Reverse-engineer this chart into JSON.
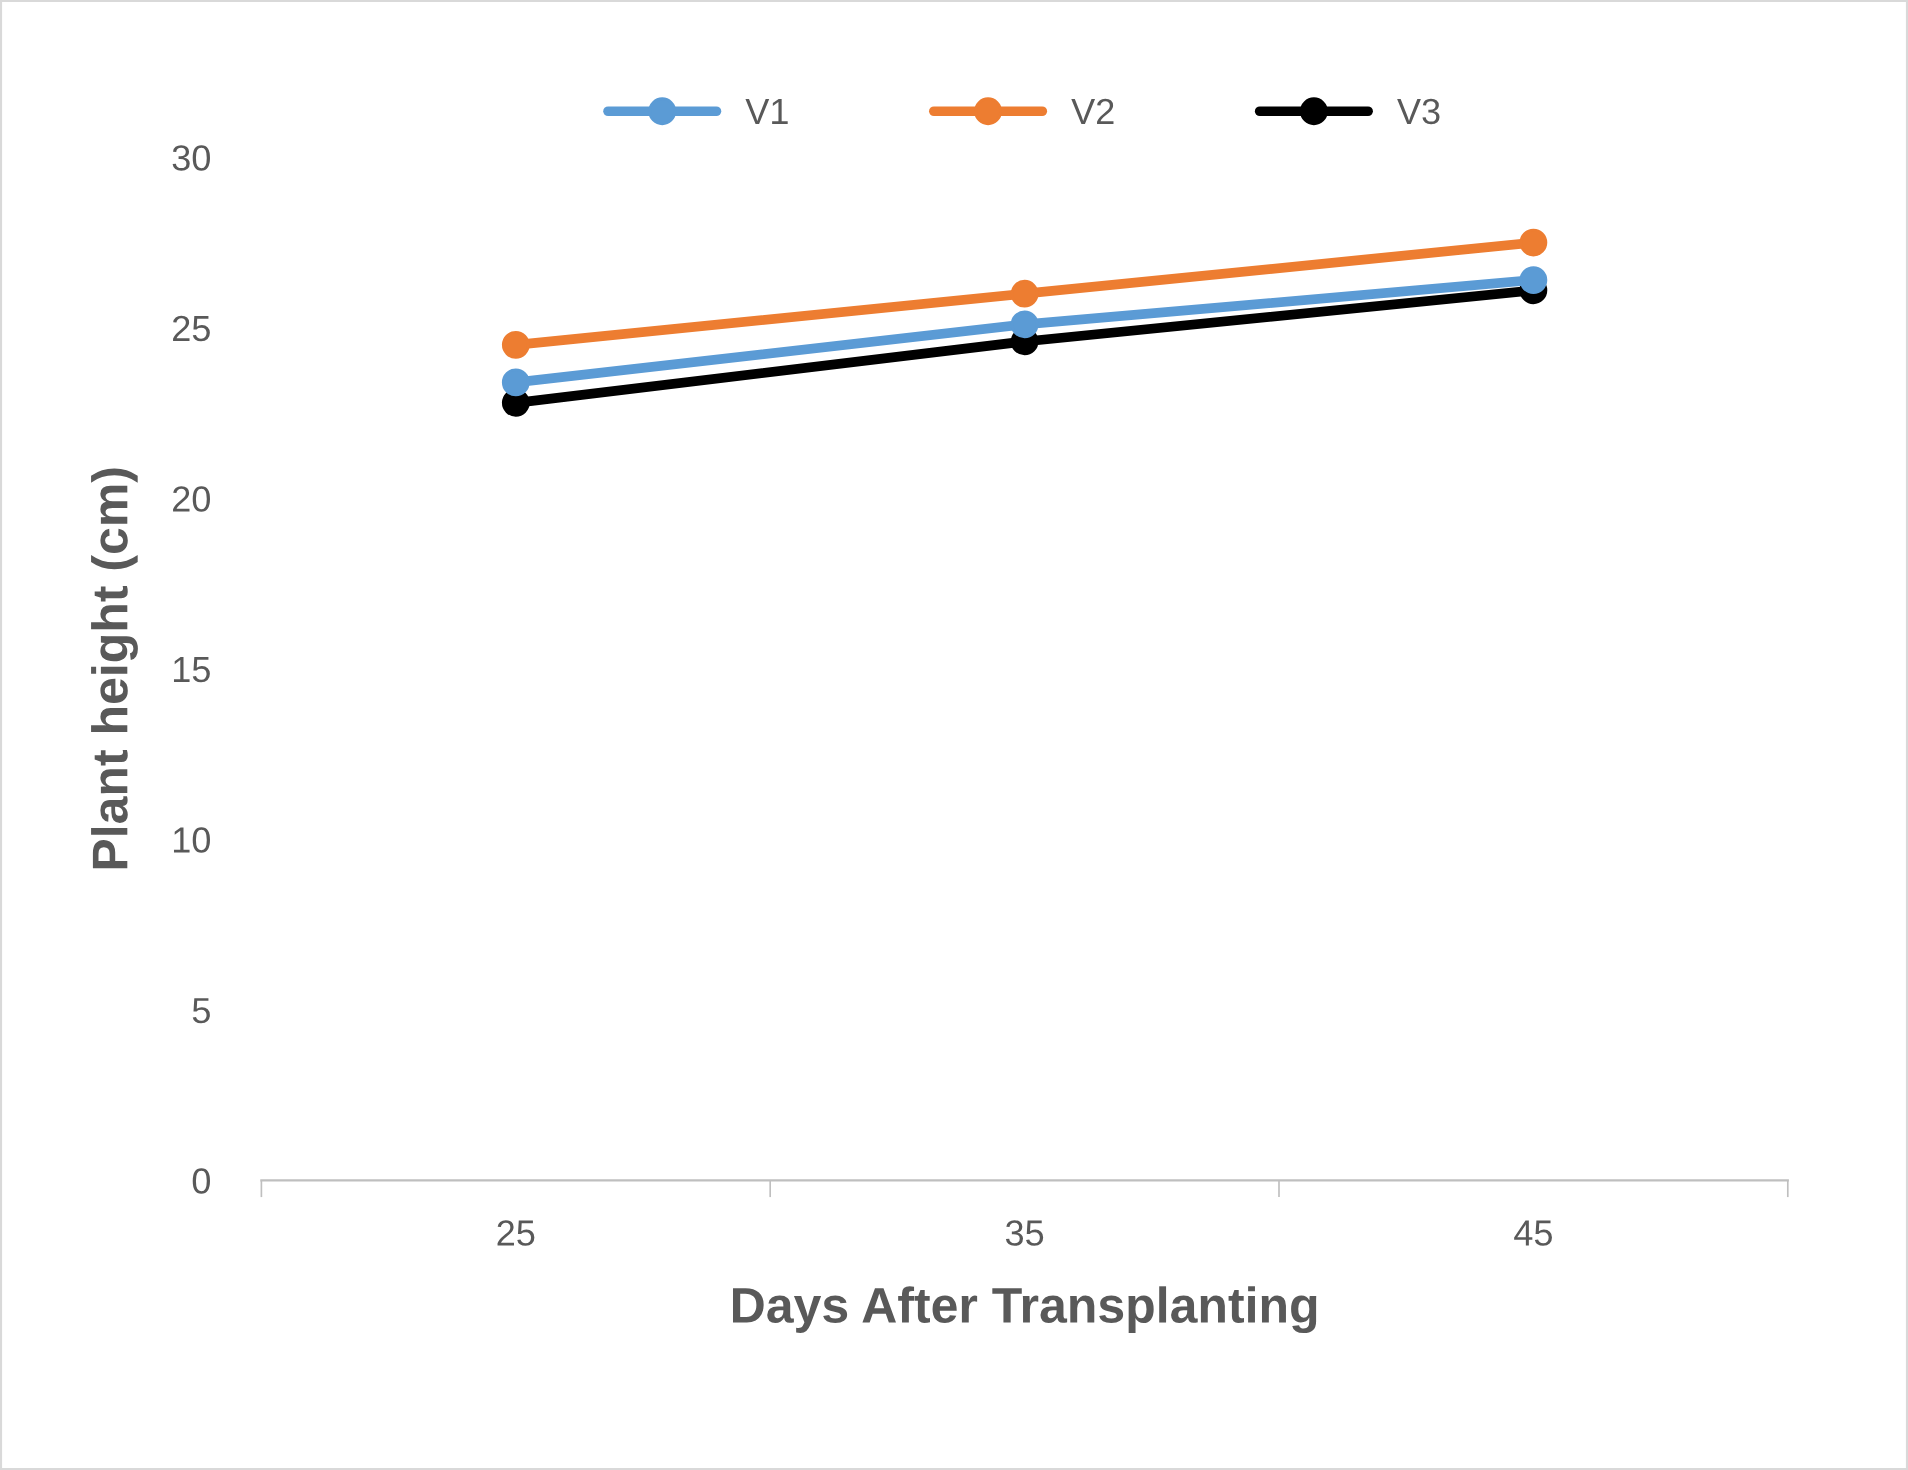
{
  "chart_data": {
    "type": "line",
    "xlabel": "Days After Transplanting",
    "ylabel": "Plant height (cm)",
    "categories": [
      "25",
      "35",
      "45"
    ],
    "series": [
      {
        "name": "V1",
        "color": "#5b9bd5",
        "values": [
          23.4,
          25.1,
          26.4
        ]
      },
      {
        "name": "V2",
        "color": "#ed7d31",
        "values": [
          24.5,
          26.0,
          27.5
        ]
      },
      {
        "name": "V3",
        "color": "#000000",
        "values": [
          22.8,
          24.6,
          26.1
        ]
      }
    ],
    "ylim": [
      0,
      30
    ],
    "yticks": [
      0,
      5,
      10,
      15,
      20,
      25,
      30
    ],
    "grid": false,
    "legend": "top",
    "marker": "circle",
    "line_style": "solid"
  }
}
